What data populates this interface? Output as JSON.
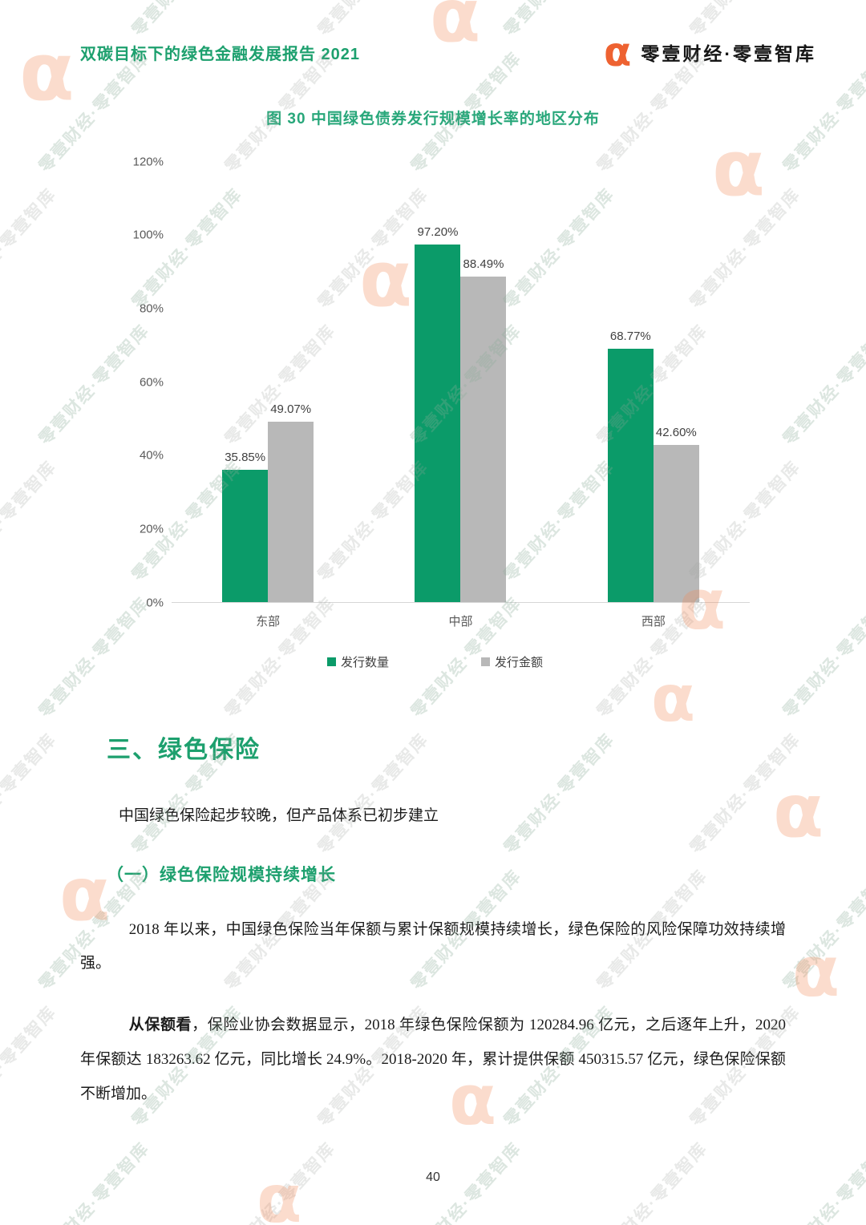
{
  "header": {
    "report_title": "双碳目标下的绿色金融发展报告 2021",
    "logo_glyph": "α",
    "brand_text": "零壹财经·零壹智库"
  },
  "chart_data": {
    "type": "bar",
    "title": "图 30 中国绿色债券发行规模增长率的地区分布",
    "categories": [
      "东部",
      "中部",
      "西部"
    ],
    "series": [
      {
        "name": "发行数量",
        "color": "#0B9B69",
        "values": [
          35.85,
          97.2,
          68.77
        ]
      },
      {
        "name": "发行金额",
        "color": "#B8B8B8",
        "values": [
          49.07,
          88.49,
          42.6
        ]
      }
    ],
    "value_suffix": "%",
    "ylim": [
      0,
      120
    ],
    "ytick_step": 20,
    "grid": false,
    "legend_position": "bottom",
    "xlabel": "",
    "ylabel": ""
  },
  "section": {
    "heading": "三、绿色保险",
    "intro": "中国绿色保险起步较晚，但产品体系已初步建立",
    "subheading": "（一）绿色保险规模持续增长",
    "paragraph1": "2018 年以来，中国绿色保险当年保额与累计保额规模持续增长，绿色保险的风险保障功效持续增强。",
    "paragraph2_lead": "从保额看",
    "paragraph2_rest": "，保险业协会数据显示，2018 年绿色保险保额为 120284.96 亿元，之后逐年上升，2020 年保额达 183263.62 亿元，同比增长 24.9%。2018-2020 年，累计提供保额 450315.57 亿元，绿色保险保额不断增加。"
  },
  "watermark": {
    "text": "零壹财经·零壹智库",
    "glyph": "α"
  },
  "footer": {
    "page_number": "40"
  },
  "colors": {
    "accent_green": "#1DA06E",
    "chart_title_green": "#28A77A",
    "bar_green": "#0B9B69",
    "bar_gray": "#B8B8B8",
    "brand_orange": "#EE6231",
    "axis_line": "#D6D6D6"
  }
}
